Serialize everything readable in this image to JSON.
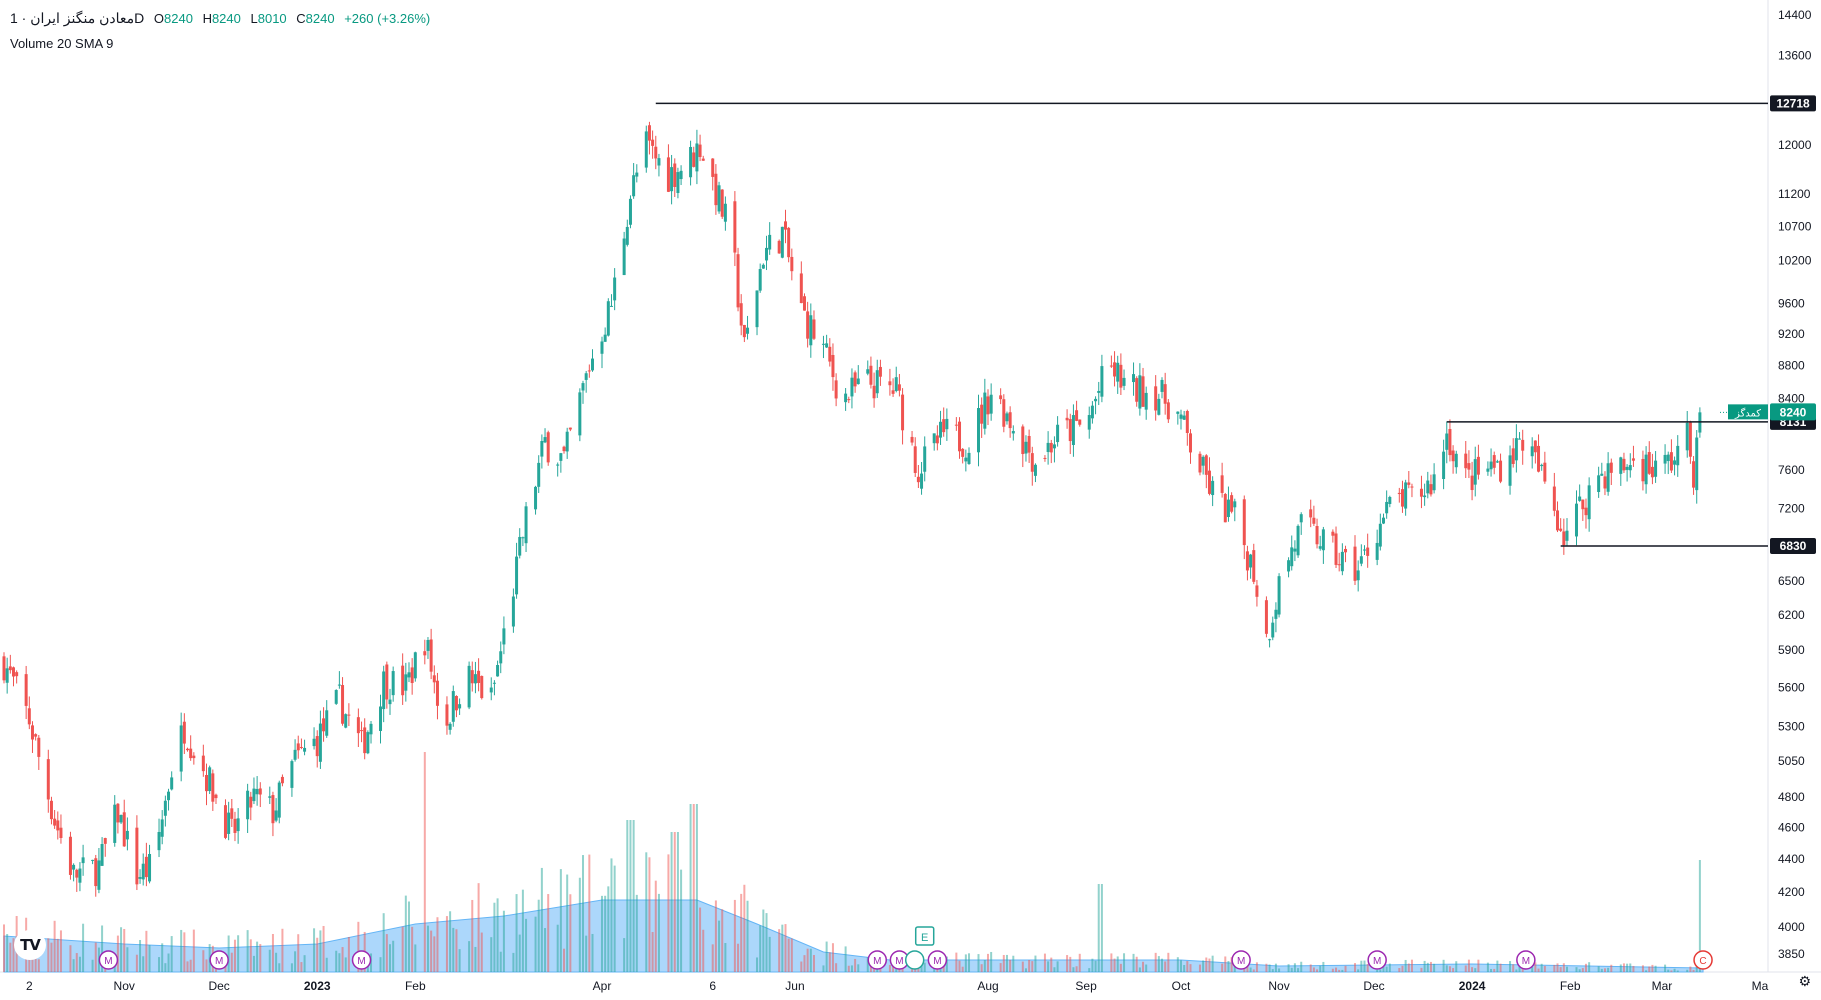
{
  "legend": {
    "symbol": "معادن منگنز ایران · 1D",
    "open_label": "O",
    "open": "8240",
    "high_label": "H",
    "high": "8240",
    "low_label": "L",
    "low": "8010",
    "close_label": "C",
    "close": "8240",
    "change": "+260 (+3.26%)",
    "volume_indicator": "Volume 20 SMA 9"
  },
  "logo_text": "TV",
  "colors": {
    "up": "#26a69a",
    "down": "#ef5350",
    "line": "#131722",
    "badge": "#131722",
    "last_badge": "#089981",
    "volume_area": "#90caf9",
    "marker_m": "#9c27b0",
    "marker_c": "#e53935"
  },
  "icons": {
    "settings": "gear-icon"
  },
  "chart_data": {
    "type": "candlestick",
    "scale": "log",
    "y_ticks": [
      3850,
      4000,
      4200,
      4400,
      4600,
      4800,
      5050,
      5300,
      5600,
      5900,
      6200,
      6500,
      6830,
      7200,
      7600,
      8131,
      8240,
      8400,
      8800,
      9200,
      9600,
      10200,
      10700,
      11200,
      12000,
      12718,
      13600,
      14400
    ],
    "x_labels": [
      {
        "label": "2",
        "date": "2022-10-02"
      },
      {
        "label": "Nov",
        "date": "2022-11-01"
      },
      {
        "label": "Dec",
        "date": "2022-12-01"
      },
      {
        "label": "2023",
        "date": "2023-01-01"
      },
      {
        "label": "Feb",
        "date": "2023-02-01"
      },
      {
        "label": "Apr",
        "date": "2023-04-01"
      },
      {
        "label": "6",
        "date": "2023-05-06"
      },
      {
        "label": "Jun",
        "date": "2023-06-01"
      },
      {
        "label": "Aug",
        "date": "2023-08-01"
      },
      {
        "label": "Sep",
        "date": "2023-09-01"
      },
      {
        "label": "Oct",
        "date": "2023-10-01"
      },
      {
        "label": "Nov",
        "date": "2023-11-01"
      },
      {
        "label": "Dec",
        "date": "2023-12-01"
      },
      {
        "label": "2024",
        "date": "2024-01-01"
      },
      {
        "label": "Feb",
        "date": "2024-02-01"
      },
      {
        "label": "Mar",
        "date": "2024-03-01"
      },
      {
        "label": "Ma",
        "date": "2024-04-01"
      }
    ],
    "close_path": [
      [
        "2022-09-24",
        5800
      ],
      [
        "2022-10-02",
        5350
      ],
      [
        "2022-10-10",
        4650
      ],
      [
        "2022-10-16",
        4300
      ],
      [
        "2022-10-24",
        4350
      ],
      [
        "2022-10-30",
        4700
      ],
      [
        "2022-11-05",
        4300
      ],
      [
        "2022-11-10",
        4350
      ],
      [
        "2022-11-16",
        5000
      ],
      [
        "2022-11-20",
        5300
      ],
      [
        "2022-11-28",
        4900
      ],
      [
        "2022-12-05",
        4550
      ],
      [
        "2022-12-12",
        4800
      ],
      [
        "2022-12-18",
        4700
      ],
      [
        "2022-12-25",
        5050
      ],
      [
        "2023-01-01",
        5200
      ],
      [
        "2023-01-08",
        5500
      ],
      [
        "2023-01-15",
        5150
      ],
      [
        "2023-01-22",
        5650
      ],
      [
        "2023-01-29",
        5600
      ],
      [
        "2023-02-04",
        6000
      ],
      [
        "2023-02-10",
        5300
      ],
      [
        "2023-02-17",
        5700
      ],
      [
        "2023-02-25",
        5500
      ],
      [
        "2023-03-03",
        6300
      ],
      [
        "2023-03-08",
        7100
      ],
      [
        "2023-03-14",
        7900
      ],
      [
        "2023-03-20",
        7700
      ],
      [
        "2023-03-28",
        8800
      ],
      [
        "2023-04-04",
        9600
      ],
      [
        "2023-04-10",
        11200
      ],
      [
        "2023-04-15",
        12000
      ],
      [
        "2023-04-22",
        11500
      ],
      [
        "2023-04-28",
        11700
      ],
      [
        "2023-05-02",
        12000
      ],
      [
        "2023-05-06",
        11400
      ],
      [
        "2023-05-12",
        10500
      ],
      [
        "2023-05-16",
        9000
      ],
      [
        "2023-05-22",
        10300
      ],
      [
        "2023-05-28",
        10600
      ],
      [
        "2023-06-03",
        9500
      ],
      [
        "2023-06-10",
        9000
      ],
      [
        "2023-06-16",
        8400
      ],
      [
        "2023-06-24",
        8600
      ],
      [
        "2023-07-03",
        8500
      ],
      [
        "2023-07-10",
        7600
      ],
      [
        "2023-07-18",
        8000
      ],
      [
        "2023-07-26",
        7900
      ],
      [
        "2023-08-02",
        8500
      ],
      [
        "2023-08-09",
        8100
      ],
      [
        "2023-08-16",
        7700
      ],
      [
        "2023-08-24",
        8000
      ],
      [
        "2023-09-01",
        8100
      ],
      [
        "2023-09-08",
        8800
      ],
      [
        "2023-09-15",
        8500
      ],
      [
        "2023-09-22",
        8500
      ],
      [
        "2023-09-29",
        8300
      ],
      [
        "2023-10-06",
        7700
      ],
      [
        "2023-10-12",
        7300
      ],
      [
        "2023-10-18",
        7100
      ],
      [
        "2023-10-24",
        6600
      ],
      [
        "2023-10-28",
        6000
      ],
      [
        "2023-11-02",
        6600
      ],
      [
        "2023-11-08",
        7000
      ],
      [
        "2023-11-14",
        6900
      ],
      [
        "2023-11-20",
        6700
      ],
      [
        "2023-11-26",
        6600
      ],
      [
        "2023-12-02",
        7000
      ],
      [
        "2023-12-08",
        7300
      ],
      [
        "2023-12-14",
        7300
      ],
      [
        "2023-12-20",
        7500
      ],
      [
        "2023-12-24",
        8000
      ],
      [
        "2023-12-30",
        7500
      ],
      [
        "2024-01-06",
        7600
      ],
      [
        "2024-01-12",
        7700
      ],
      [
        "2024-01-17",
        7950
      ],
      [
        "2024-01-22",
        7600
      ],
      [
        "2024-01-26",
        7300
      ],
      [
        "2024-01-30",
        6950
      ],
      [
        "2024-02-04",
        7200
      ],
      [
        "2024-02-10",
        7550
      ],
      [
        "2024-02-16",
        7600
      ],
      [
        "2024-02-22",
        7700
      ],
      [
        "2024-02-28",
        7600
      ],
      [
        "2024-03-04",
        7700
      ],
      [
        "2024-03-09",
        7950
      ],
      [
        "2024-03-11",
        7600
      ],
      [
        "2024-03-14",
        8240
      ]
    ],
    "horizontal_levels": [
      {
        "value": 12718,
        "label": "12718",
        "from": "2023-04-18"
      },
      {
        "value": 8131,
        "label": "8131",
        "from": "2023-12-24"
      },
      {
        "value": 6830,
        "label": "6830",
        "from": "2024-01-29"
      }
    ],
    "last_price": {
      "value": 8240,
      "label": "8240",
      "tag": "کمدگز"
    },
    "volume": {
      "spikes": [
        [
          "2023-02-03",
          0.55
        ],
        [
          "2023-04-10",
          0.38
        ],
        [
          "2023-04-24",
          0.35
        ],
        [
          "2023-04-30",
          0.42
        ],
        [
          "2023-09-06",
          0.22
        ],
        [
          "2024-03-14",
          0.28
        ]
      ],
      "sma_path": [
        [
          "2022-09-24",
          0.09
        ],
        [
          "2022-11-01",
          0.07
        ],
        [
          "2022-12-01",
          0.06
        ],
        [
          "2023-01-01",
          0.07
        ],
        [
          "2023-02-01",
          0.12
        ],
        [
          "2023-03-01",
          0.14
        ],
        [
          "2023-04-01",
          0.18
        ],
        [
          "2023-05-01",
          0.18
        ],
        [
          "2023-05-20",
          0.12
        ],
        [
          "2023-06-10",
          0.05
        ],
        [
          "2023-07-01",
          0.03
        ],
        [
          "2023-09-01",
          0.03
        ],
        [
          "2023-10-01",
          0.03
        ],
        [
          "2023-11-01",
          0.015
        ],
        [
          "2024-01-01",
          0.02
        ],
        [
          "2024-03-14",
          0.01
        ]
      ]
    },
    "markers": [
      {
        "letter": "M",
        "date": "2022-10-27"
      },
      {
        "letter": "M",
        "date": "2022-12-01"
      },
      {
        "letter": "M",
        "date": "2023-01-15"
      },
      {
        "letter": "M",
        "date": "2023-06-27"
      },
      {
        "letter": "M",
        "date": "2023-07-04"
      },
      {
        "letter": "E",
        "date": "2023-07-12"
      },
      {
        "letter": "M",
        "date": "2023-07-16"
      },
      {
        "letter": "M",
        "date": "2023-10-20"
      },
      {
        "letter": "M",
        "date": "2023-12-02"
      },
      {
        "letter": "M",
        "date": "2024-01-18"
      },
      {
        "letter": "C",
        "date": "2024-03-14"
      }
    ]
  }
}
